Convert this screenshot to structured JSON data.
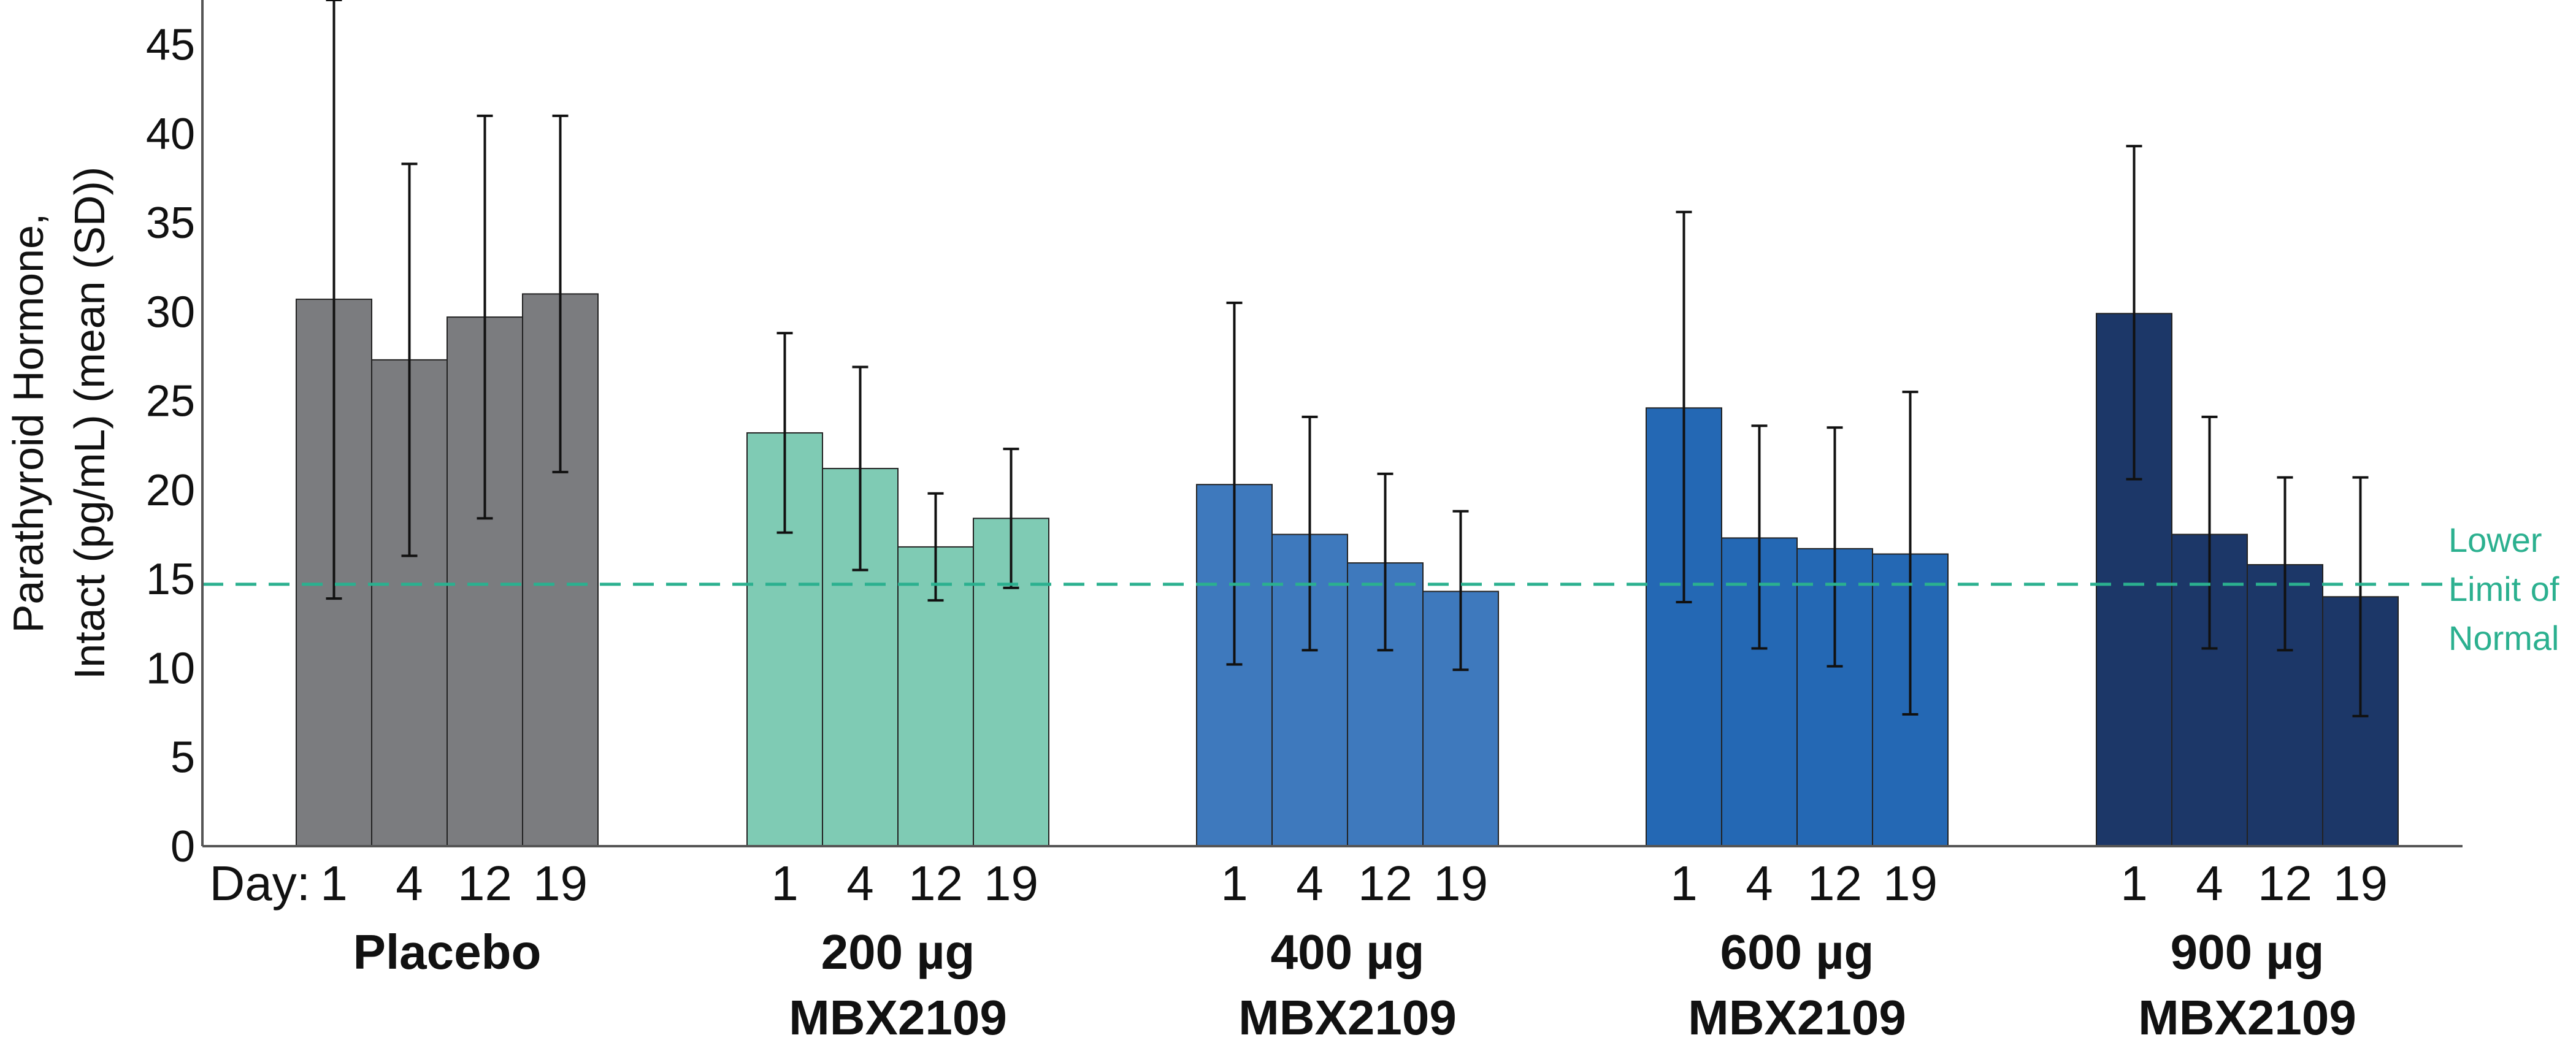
{
  "chart_data": {
    "type": "bar",
    "ylabel_lines": [
      "Parathyroid Hormone,",
      "Intact (pg/mL) (mean (SD))"
    ],
    "ylim": [
      0,
      47.5
    ],
    "yticks": [
      0,
      5,
      10,
      15,
      20,
      25,
      30,
      35,
      40,
      45
    ],
    "grid": false,
    "day_prefix": "Day:",
    "days": [
      "1",
      "4",
      "12",
      "19"
    ],
    "groups": [
      {
        "name_lines": [
          "Placebo"
        ],
        "color": "#7b7c7f",
        "values": [
          30.7,
          27.3,
          29.7,
          31.0
        ],
        "sd_low": [
          13.9,
          16.3,
          18.4,
          21.0
        ],
        "sd_high": [
          47.5,
          38.3,
          41.0,
          41.0
        ]
      },
      {
        "name_lines": [
          "200 µg",
          "MBX2109"
        ],
        "color": "#7fcbb4",
        "values": [
          23.2,
          21.2,
          16.8,
          18.4
        ],
        "sd_low": [
          17.6,
          15.5,
          13.8,
          14.5
        ],
        "sd_high": [
          28.8,
          26.9,
          19.8,
          22.3
        ]
      },
      {
        "name_lines": [
          "400 µg",
          "MBX2109"
        ],
        "color": "#3e79bd",
        "values": [
          20.3,
          17.5,
          15.9,
          14.3
        ],
        "sd_low": [
          10.2,
          11.0,
          11.0,
          9.9
        ],
        "sd_high": [
          30.5,
          24.1,
          20.9,
          18.8
        ]
      },
      {
        "name_lines": [
          "600 µg",
          "MBX2109"
        ],
        "color": "#2468b4",
        "values": [
          24.6,
          17.3,
          16.7,
          16.4
        ],
        "sd_low": [
          13.7,
          11.1,
          10.1,
          7.4
        ],
        "sd_high": [
          35.6,
          23.6,
          23.5,
          25.5
        ]
      },
      {
        "name_lines": [
          "900 µg",
          "MBX2109"
        ],
        "color": "#1c3768",
        "values": [
          29.9,
          17.5,
          15.8,
          14.0
        ],
        "sd_low": [
          20.6,
          11.1,
          11.0,
          7.3
        ],
        "sd_high": [
          39.3,
          24.1,
          20.7,
          20.7
        ]
      }
    ],
    "reference_line": {
      "value": 14.7,
      "label_lines": [
        "Lower",
        "Limit of",
        "Normal"
      ],
      "color": "#2bb08f"
    },
    "error_bar_color": "#111111",
    "axis_color": "#555555"
  }
}
